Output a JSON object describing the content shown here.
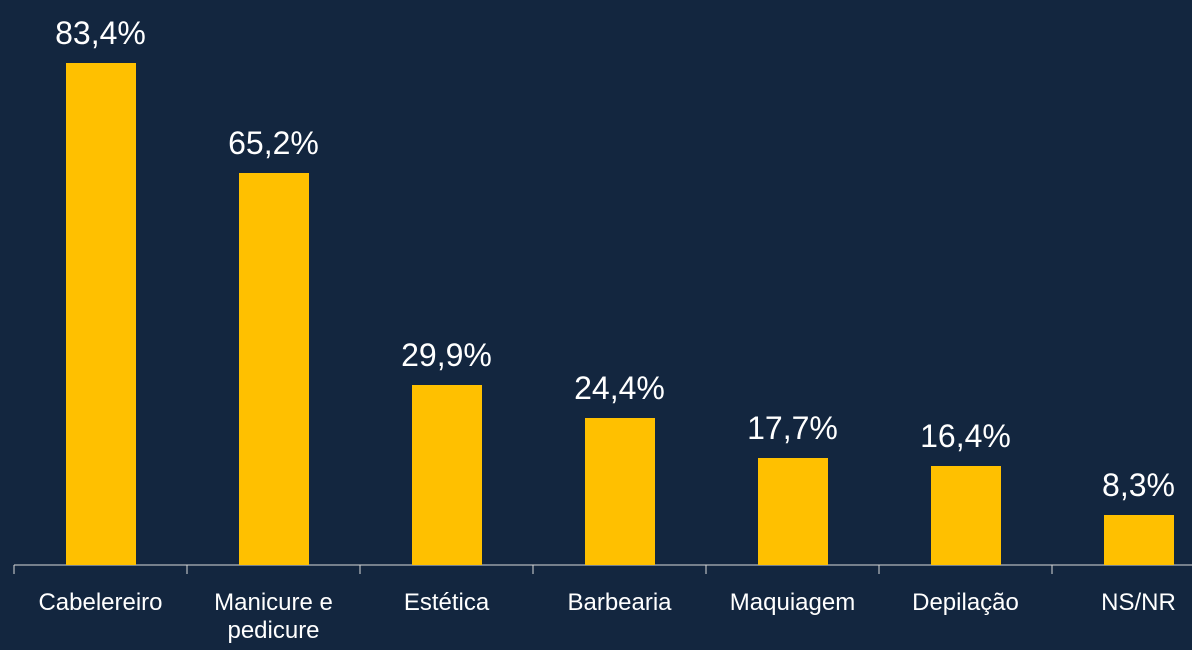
{
  "chart_data": {
    "type": "bar",
    "categories": [
      "Cabelereiro",
      "Manicure e pedicure",
      "Estética",
      "Barbearia",
      "Maquiagem",
      "Depilação",
      "NS/NR"
    ],
    "values": [
      83.4,
      65.2,
      29.9,
      24.4,
      17.7,
      16.4,
      8.3
    ],
    "value_labels": [
      "83,4%",
      "65,2%",
      "29,9%",
      "24,4%",
      "17,7%",
      "16,4%",
      "8,3%"
    ],
    "color": "#ffc000"
  }
}
